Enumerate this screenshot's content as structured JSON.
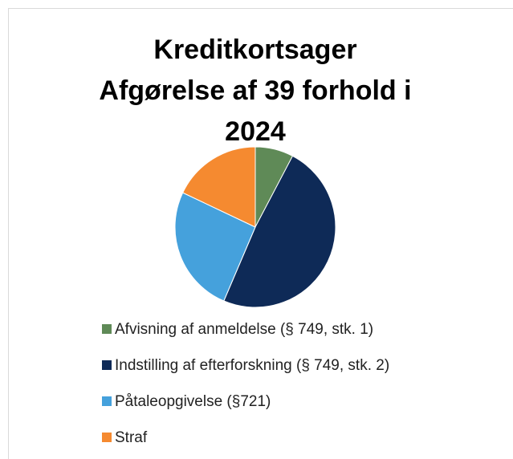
{
  "chart_data": {
    "type": "pie",
    "title": [
      "Kreditkortsager",
      "Afgørelse af 39 forhold i",
      "2024"
    ],
    "categories": [
      "Afvisning af anmeldelse (§ 749, stk. 1)",
      "Indstilling af efterforskning (§ 749, stk. 2)",
      "Påtaleopgivelse (§721)",
      "Straf"
    ],
    "values": [
      3,
      19,
      10,
      7
    ],
    "colors": [
      "#5f8a57",
      "#0e2a57",
      "#45a1dc",
      "#f58a30"
    ],
    "legend": "bottom"
  }
}
